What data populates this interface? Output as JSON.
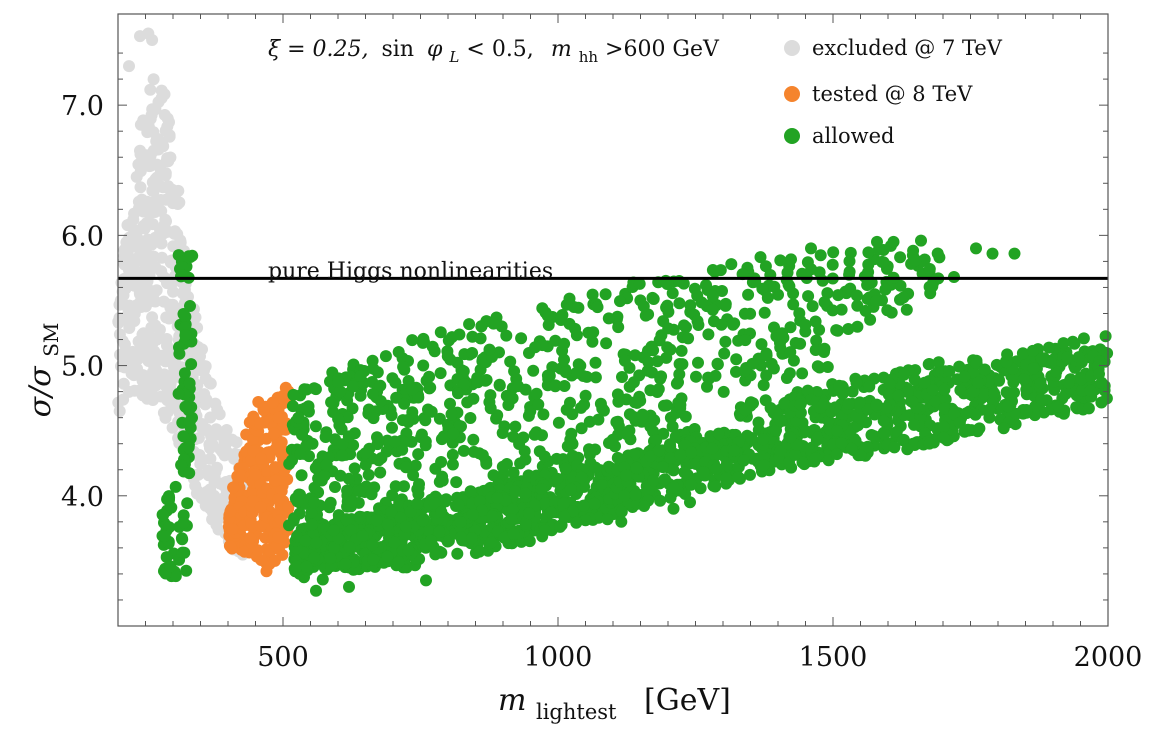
{
  "chart_data": {
    "type": "scatter",
    "title_parts": {
      "xi": "ξ = 0.25,",
      "sin": "sin",
      "phi": "φ",
      "phi_sub": "L",
      "cond": " < 0.5,",
      "m": "m",
      "m_sub": "hh",
      "mcond": ">600 GeV"
    },
    "xlabel": {
      "main": "m",
      "sub": "lightest",
      "unit": "[GeV]"
    },
    "ylabel": {
      "main": "σ/σ",
      "sub": "SM"
    },
    "xlim": [
      200,
      2000
    ],
    "ylim": [
      3.0,
      7.7
    ],
    "x_ticks": [
      {
        "value": 500,
        "label": "500"
      },
      {
        "value": 1000,
        "label": "1000"
      },
      {
        "value": 1500,
        "label": "1500"
      },
      {
        "value": 2000,
        "label": "2000"
      }
    ],
    "y_ticks": [
      {
        "value": 4.0,
        "label": "4.0"
      },
      {
        "value": 5.0,
        "label": "5.0"
      },
      {
        "value": 6.0,
        "label": "6.0"
      },
      {
        "value": 7.0,
        "label": "7.0"
      }
    ],
    "reference_line": {
      "y": 5.67,
      "label": "pure Higgs nonlinearities"
    },
    "series": [
      {
        "name": "excluded @ 7 TeV",
        "color": "#dcdcdc",
        "regions": [
          {
            "x": [
              200,
              230
            ],
            "ylow": [
              4.7,
              4.8
            ],
            "yhigh": [
              5.5,
              6.6
            ],
            "n": 70
          },
          {
            "x": [
              230,
              270
            ],
            "ylow": [
              4.8,
              4.7
            ],
            "yhigh": [
              6.6,
              7.5
            ],
            "n": 140
          },
          {
            "x": [
              270,
              300
            ],
            "ylow": [
              4.7,
              4.4
            ],
            "yhigh": [
              7.5,
              6.7
            ],
            "n": 90
          },
          {
            "x": [
              300,
              330
            ],
            "ylow": [
              4.4,
              4.1
            ],
            "yhigh": [
              6.7,
              5.6
            ],
            "n": 70
          },
          {
            "x": [
              330,
              360
            ],
            "ylow": [
              4.1,
              3.9
            ],
            "yhigh": [
              5.6,
              5.0
            ],
            "n": 55
          },
          {
            "x": [
              360,
              400
            ],
            "ylow": [
              3.9,
              3.6
            ],
            "yhigh": [
              5.0,
              4.5
            ],
            "n": 60
          },
          {
            "x": [
              400,
              440
            ],
            "ylow": [
              3.6,
              3.5
            ],
            "yhigh": [
              4.5,
              4.3
            ],
            "n": 40
          }
        ],
        "points": [
          [
            240,
            7.53
          ],
          [
            255,
            7.55
          ],
          [
            262,
            7.5
          ],
          [
            220,
            7.3
          ],
          [
            205,
            5.5
          ],
          [
            203,
            4.65
          ]
        ]
      },
      {
        "name": "tested @ 8 TeV",
        "color": "#f5842d",
        "regions": [
          {
            "x": [
              400,
              440
            ],
            "ylow": [
              3.6,
              3.55
            ],
            "yhigh": [
              3.9,
              4.6
            ],
            "n": 80
          },
          {
            "x": [
              440,
              480
            ],
            "ylow": [
              3.55,
              3.45
            ],
            "yhigh": [
              4.6,
              4.72
            ],
            "n": 110
          },
          {
            "x": [
              480,
              510
            ],
            "ylow": [
              3.45,
              3.6
            ],
            "yhigh": [
              4.72,
              4.82
            ],
            "n": 80
          }
        ],
        "points": [
          [
            470,
            3.42
          ],
          [
            455,
            4.72
          ],
          [
            505,
            4.83
          ]
        ]
      },
      {
        "name": "allowed",
        "color": "#22a323",
        "regions": [
          {
            "x": [
              310,
              335
            ],
            "ylow": [
              4.15,
              4.15
            ],
            "yhigh": [
              5.9,
              5.9
            ],
            "n": 60
          },
          {
            "x": [
              280,
              330
            ],
            "ylow": [
              3.4,
              3.35
            ],
            "yhigh": [
              3.9,
              4.4
            ],
            "n": 40
          },
          {
            "x": [
              510,
              600
            ],
            "ylow": [
              3.4,
              3.3
            ],
            "yhigh": [
              4.8,
              5.0
            ],
            "n": 110
          },
          {
            "x": [
              600,
              800
            ],
            "ylow": [
              3.35,
              3.5
            ],
            "yhigh": [
              5.0,
              5.3
            ],
            "n": 220
          },
          {
            "x": [
              800,
              1000
            ],
            "ylow": [
              3.5,
              3.7
            ],
            "yhigh": [
              5.3,
              5.5
            ],
            "n": 200
          },
          {
            "x": [
              1000,
              1250
            ],
            "ylow": [
              4.2,
              4.4
            ],
            "yhigh": [
              5.5,
              5.8
            ],
            "n": 180
          },
          {
            "x": [
              1250,
              1500
            ],
            "ylow": [
              4.7,
              5.0
            ],
            "yhigh": [
              5.8,
              5.9
            ],
            "n": 130
          },
          {
            "x": [
              1500,
              1700
            ],
            "ylow": [
              5.2,
              5.5
            ],
            "yhigh": [
              5.9,
              5.95
            ],
            "n": 70
          },
          {
            "x": [
              520,
              800
            ],
            "ylow": [
              3.35,
              3.55
            ],
            "yhigh": [
              3.75,
              4.0
            ],
            "n": 320
          },
          {
            "x": [
              800,
              1100
            ],
            "ylow": [
              3.55,
              3.85
            ],
            "yhigh": [
              4.0,
              4.3
            ],
            "n": 300
          },
          {
            "x": [
              1100,
              1400
            ],
            "ylow": [
              3.85,
              4.2
            ],
            "yhigh": [
              4.3,
              4.6
            ],
            "n": 260
          },
          {
            "x": [
              1400,
              1700
            ],
            "ylow": [
              4.2,
              4.4
            ],
            "yhigh": [
              4.6,
              4.9
            ],
            "n": 210
          },
          {
            "x": [
              1700,
              2000
            ],
            "ylow": [
              4.4,
              4.7
            ],
            "yhigh": [
              4.9,
              5.2
            ],
            "n": 180
          },
          {
            "x": [
              1330,
              1700
            ],
            "ylow": [
              4.6,
              4.7
            ],
            "yhigh": [
              4.7,
              5.05
            ],
            "n": 110
          },
          {
            "x": [
              1700,
              2000
            ],
            "ylow": [
              4.75,
              4.85
            ],
            "yhigh": [
              5.0,
              5.25
            ],
            "n": 90
          }
        ],
        "points": [
          [
            1790,
            5.86
          ],
          [
            1830,
            5.86
          ],
          [
            1760,
            5.9
          ],
          [
            1720,
            5.68
          ],
          [
            1580,
            5.95
          ],
          [
            1610,
            5.95
          ],
          [
            1660,
            5.96
          ],
          [
            1460,
            5.9
          ],
          [
            560,
            3.27
          ],
          [
            620,
            3.3
          ],
          [
            760,
            3.35
          ],
          [
            1090,
            3.82
          ],
          [
            1115,
            3.8
          ],
          [
            1210,
            3.9
          ],
          [
            1240,
            3.95
          ]
        ]
      }
    ],
    "legend": [
      {
        "label": "excluded @ 7 TeV",
        "color": "#dcdcdc"
      },
      {
        "label": "tested @ 8 TeV",
        "color": "#f5842d"
      },
      {
        "label": "allowed",
        "color": "#22a323"
      }
    ]
  }
}
